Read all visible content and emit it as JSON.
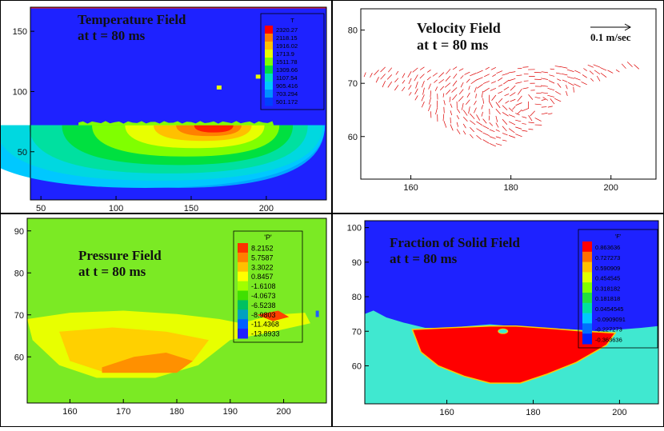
{
  "chart_data": [
    {
      "type": "heatmap",
      "title": "Temperature Field",
      "subtitle": "at t = 80 ms",
      "xticks": [
        "50",
        "100",
        "150",
        "200"
      ],
      "yticks": [
        "50",
        "100",
        "150"
      ],
      "xlim": [
        43,
        240
      ],
      "ylim": [
        10,
        170
      ],
      "legend": {
        "title": "T",
        "levels": [
          "2320.27",
          "2118.15",
          "1916.02",
          "1713.9",
          "1511.78",
          "1309.66",
          "1107.54",
          "905.416",
          "703.294",
          "501.172"
        ],
        "colors": [
          "#ff0000",
          "#ff8000",
          "#ffc000",
          "#e8ff00",
          "#80ff00",
          "#00e040",
          "#00e0c0",
          "#00c8ff",
          "#0090ff",
          "#0040ff"
        ]
      },
      "background_color": "#1e22ff"
    },
    {
      "type": "scatter",
      "title": "Velocity Field",
      "subtitle": "at t = 80 ms",
      "reference_vector": "0.1 m/sec",
      "xticks": [
        "160",
        "180",
        "200"
      ],
      "yticks": [
        "60",
        "70",
        "80"
      ],
      "xlim": [
        150,
        209
      ],
      "ylim": [
        52,
        84
      ],
      "vector_color": "#dd0000"
    },
    {
      "type": "heatmap",
      "title": "Pressure Field",
      "subtitle": "at t = 80 ms",
      "xticks": [
        "160",
        "170",
        "180",
        "190",
        "200"
      ],
      "yticks": [
        "60",
        "70",
        "80",
        "90"
      ],
      "xlim": [
        152,
        208
      ],
      "ylim": [
        49,
        93
      ],
      "legend": {
        "title": "'P'",
        "levels": [
          "8.2152",
          "5.7587",
          "3.3022",
          "0.8457",
          "-1.6108",
          "-4.0673",
          "-6.5238",
          "-8.9803",
          "-11.4368",
          "-13.8933"
        ],
        "colors": [
          "#ff3000",
          "#ff8000",
          "#ffc000",
          "#ffff00",
          "#a0ff00",
          "#40e000",
          "#00c060",
          "#00a0c0",
          "#0060ff",
          "#2020ff"
        ]
      },
      "background_color": "#7bea24"
    },
    {
      "type": "heatmap",
      "title": "Fraction of Solid Field",
      "subtitle": "at t = 80 ms",
      "xticks": [
        "160",
        "180",
        "200"
      ],
      "yticks": [
        "60",
        "70",
        "80",
        "90",
        "100"
      ],
      "xlim": [
        141,
        209
      ],
      "ylim": [
        49,
        102
      ],
      "legend": {
        "title": "'F'",
        "levels": [
          "0.863636",
          "0.727273",
          "0.590909",
          "0.454545",
          "0.318182",
          "0.181818",
          "0.0454545",
          "-0.0909091",
          "-0.227273",
          "-0.363636"
        ],
        "colors": [
          "#ff0000",
          "#ff7000",
          "#ffc000",
          "#e0ff00",
          "#80ff00",
          "#20e040",
          "#00e0a0",
          "#00c8ff",
          "#0070ff",
          "#0020ff"
        ]
      },
      "background_color": "#1e22ff",
      "liquid_color": "#ff0000",
      "solid_color": "#40e8d0"
    }
  ]
}
